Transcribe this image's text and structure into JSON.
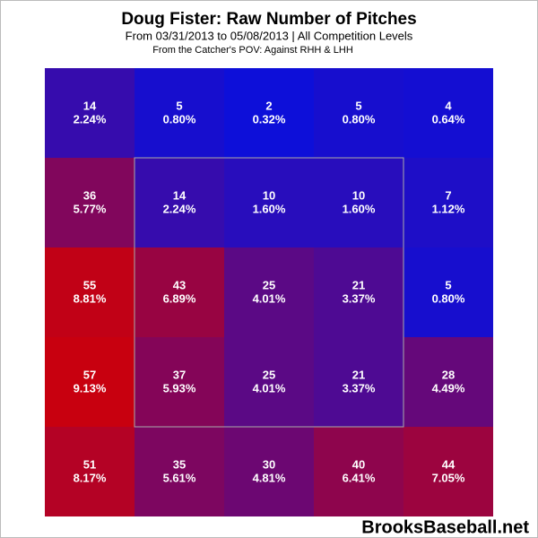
{
  "chart_data": {
    "type": "heatmap",
    "title": "Doug Fister: Raw Number of Pitches",
    "subtitle": "From 03/31/2013 to 05/08/2013 | All Competition Levels",
    "note": "From the Catcher's POV:  Against RHH & LHH",
    "watermark": "BrooksBaseball.net",
    "color_scale": [
      "#0d0fd9",
      "#c8000f"
    ],
    "values": [
      [
        14,
        5,
        2,
        5,
        4
      ],
      [
        36,
        14,
        10,
        10,
        7
      ],
      [
        55,
        43,
        25,
        21,
        5
      ],
      [
        57,
        37,
        25,
        21,
        28
      ],
      [
        51,
        35,
        30,
        40,
        44
      ]
    ],
    "percents": [
      [
        {
          "value": 2.24,
          "label": "2.24%"
        },
        {
          "value": 0.8,
          "label": "0.80%"
        },
        {
          "value": 0.32,
          "label": "0.32%"
        },
        {
          "value": 0.8,
          "label": "0.80%"
        },
        {
          "value": 0.64,
          "label": "0.64%"
        }
      ],
      [
        {
          "value": 5.77,
          "label": "5.77%"
        },
        {
          "value": 2.24,
          "label": "2.24%"
        },
        {
          "value": 1.6,
          "label": "1.60%"
        },
        {
          "value": 1.6,
          "label": "1.60%"
        },
        {
          "value": 1.12,
          "label": "1.12%"
        }
      ],
      [
        {
          "value": 8.81,
          "label": "8.81%"
        },
        {
          "value": 6.89,
          "label": "6.89%"
        },
        {
          "value": 4.01,
          "label": "4.01%"
        },
        {
          "value": 3.37,
          "label": "3.37%"
        },
        {
          "value": 0.8,
          "label": "0.80%"
        }
      ],
      [
        {
          "value": 9.13,
          "label": "9.13%"
        },
        {
          "value": 5.93,
          "label": "5.93%"
        },
        {
          "value": 4.01,
          "label": "4.01%"
        },
        {
          "value": 3.37,
          "label": "3.37%"
        },
        {
          "value": 4.49,
          "label": "4.49%"
        }
      ],
      [
        {
          "value": 8.17,
          "label": "8.17%"
        },
        {
          "value": 5.61,
          "label": "5.61%"
        },
        {
          "value": 4.81,
          "label": "4.81%"
        },
        {
          "value": 6.41,
          "label": "6.41%"
        },
        {
          "value": 7.05,
          "label": "7.05%"
        }
      ]
    ]
  }
}
